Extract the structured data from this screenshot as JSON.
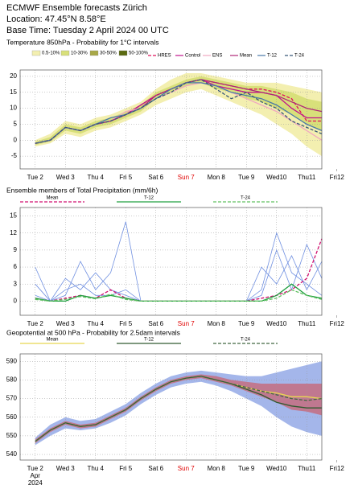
{
  "header": {
    "title": "ECMWF Ensemble forecasts Zürich",
    "location": "Location:  47.45°N 8.58°E",
    "base_time": "Base Time: Tuesday  2 April 2024 00 UTC"
  },
  "chart_data": [
    {
      "type": "line",
      "title": "Temperature 850hPa - Probability for 1°C intervals",
      "x": [
        0,
        12,
        24,
        36,
        48,
        60,
        72,
        84,
        96,
        108,
        120,
        132,
        144,
        156,
        168,
        180,
        192,
        204,
        216,
        228
      ],
      "xlim": [
        -12,
        228
      ],
      "xticks": [
        {
          "value": 0,
          "label": "Tue 2"
        },
        {
          "value": 24,
          "label": "Wed 3"
        },
        {
          "value": 48,
          "label": "Thu 4"
        },
        {
          "value": 72,
          "label": "Fri 5"
        },
        {
          "value": 96,
          "label": "Sat 6"
        },
        {
          "value": 120,
          "label": "Sun 7",
          "color": "#e00000"
        },
        {
          "value": 144,
          "label": "Mon 8"
        },
        {
          "value": 168,
          "label": "Tue 9"
        },
        {
          "value": 192,
          "label": "Wed10"
        },
        {
          "value": 216,
          "label": "Thu11"
        },
        {
          "value": 240,
          "label": "Fri12"
        }
      ],
      "ylim": [
        -9,
        22
      ],
      "yticks": [
        -5,
        0,
        5,
        10,
        15,
        20
      ],
      "grid": true,
      "bands": [
        {
          "name": "0.5-10%",
          "color": "#f3efb0",
          "lower": [
            -2,
            -1,
            2,
            1,
            3,
            4,
            6,
            8,
            11,
            13,
            15,
            16,
            14,
            12,
            10,
            8,
            5,
            2,
            -2,
            -5
          ],
          "upper": [
            0,
            2,
            6,
            5,
            7,
            8,
            10,
            12,
            16,
            19,
            21,
            21,
            20,
            19,
            18,
            18,
            18,
            17,
            16,
            15
          ]
        },
        {
          "name": "10-30%",
          "color": "#d8e07a",
          "lower": [
            -1.5,
            -0.5,
            3,
            2,
            4,
            5,
            7,
            9,
            13,
            15,
            17,
            18,
            16,
            15,
            13,
            12,
            10,
            8,
            5,
            3
          ],
          "upper": [
            -0.5,
            1,
            5,
            4,
            6,
            7,
            9,
            11,
            15,
            17,
            19,
            20,
            19,
            18,
            17,
            17,
            16,
            15,
            13,
            12
          ]
        },
        {
          "name": "30-50%",
          "color": "#a8a848"
        },
        {
          "name": "50-100%",
          "color": "#5a6a10"
        }
      ],
      "series": [
        {
          "name": "HRES",
          "color": "#e0105c",
          "dash": true,
          "values": [
            -1,
            0,
            4,
            3,
            5,
            6,
            8,
            11,
            14,
            16,
            18,
            19,
            18,
            17,
            16,
            16,
            15,
            13,
            6,
            6
          ]
        },
        {
          "name": "Control",
          "color": "#c0148c",
          "values": [
            -1,
            0,
            4,
            3,
            5,
            6,
            8,
            11,
            14,
            16,
            18,
            19,
            17,
            16,
            15,
            15,
            14,
            10,
            7,
            7
          ]
        },
        {
          "name": "ENS",
          "color": "#f0a8c0",
          "values": [
            -1,
            0,
            4,
            3,
            5,
            6,
            9,
            10,
            13,
            15,
            17,
            18,
            17,
            15,
            13,
            11,
            9,
            6,
            3,
            0
          ]
        },
        {
          "name": "Mean",
          "color": "#b02878",
          "values": [
            -1,
            0,
            4,
            3,
            5,
            6,
            8,
            10,
            14,
            16,
            18,
            19,
            18,
            17,
            16,
            15,
            14,
            12,
            10,
            9
          ]
        },
        {
          "name": "T-12",
          "color": "#4878a8",
          "values": [
            -1,
            0,
            4,
            3,
            5,
            7,
            8,
            10,
            13,
            16,
            18,
            18,
            17,
            15,
            14,
            13,
            11,
            8,
            5,
            3
          ]
        },
        {
          "name": "T-24",
          "color": "#385878",
          "dash": true,
          "values": [
            -1,
            0,
            4,
            3,
            5,
            6,
            8,
            10,
            13,
            15,
            18,
            19,
            16,
            13,
            15,
            12,
            10,
            6,
            4,
            2
          ]
        }
      ]
    },
    {
      "type": "line",
      "title": "Ensemble members of Total Precipitation (mm/6h)",
      "x": [
        0,
        12,
        24,
        36,
        48,
        60,
        72,
        84,
        96,
        108,
        120,
        132,
        144,
        156,
        168,
        180,
        192,
        204,
        216,
        228
      ],
      "xlim": [
        -12,
        228
      ],
      "xticks": [
        {
          "value": 0,
          "label": "Tue 2"
        },
        {
          "value": 24,
          "label": "Wed 3"
        },
        {
          "value": 48,
          "label": "Thu 4"
        },
        {
          "value": 72,
          "label": "Fri 5"
        },
        {
          "value": 96,
          "label": "Sat 6"
        },
        {
          "value": 120,
          "label": "Sun 7",
          "color": "#e00000"
        },
        {
          "value": 144,
          "label": "Mon 8"
        },
        {
          "value": 168,
          "label": "Tue 9"
        },
        {
          "value": 192,
          "label": "Wed10"
        },
        {
          "value": 216,
          "label": "Thu11"
        },
        {
          "value": 240,
          "label": "Fri12"
        }
      ],
      "ylim": [
        -2.5,
        16.5
      ],
      "yticks": [
        0,
        3,
        6,
        9,
        12,
        15
      ],
      "grid": true,
      "member_color": "#6f8fe0",
      "members": [
        [
          6,
          0,
          1,
          7,
          2,
          5,
          14,
          0,
          0,
          0,
          0,
          0,
          0,
          0,
          0,
          2,
          12,
          5,
          3,
          1
        ],
        [
          3,
          0,
          2,
          3,
          1,
          1,
          2,
          0,
          0,
          0,
          0,
          0,
          0,
          0,
          0,
          6,
          3,
          8,
          2,
          7
        ],
        [
          1,
          0,
          4,
          2,
          5,
          2,
          1,
          0,
          0,
          0,
          0,
          0,
          0,
          0,
          0,
          1,
          9,
          2,
          10,
          4
        ]
      ],
      "series": [
        {
          "name": "Mean",
          "color": "#d01070",
          "dash": true,
          "values": [
            0.5,
            0,
            0.5,
            1,
            0.5,
            2,
            0.5,
            0,
            0,
            0,
            0,
            0,
            0,
            0,
            0,
            0.5,
            1,
            2,
            4,
            11
          ]
        },
        {
          "name": "T-12",
          "color": "#20a040",
          "values": [
            0.5,
            0,
            0,
            1,
            0.5,
            1,
            0.5,
            0,
            0,
            0,
            0,
            0,
            0,
            0,
            0,
            0,
            1,
            3,
            1,
            0.5
          ]
        },
        {
          "name": "T-24",
          "color": "#60c060",
          "dash": true,
          "values": [
            0.3,
            0,
            0.3,
            0.8,
            0.4,
            1.2,
            0.3,
            0,
            0,
            0,
            0,
            0,
            0,
            0,
            0,
            0,
            0.5,
            2,
            1,
            0.3
          ]
        }
      ]
    },
    {
      "type": "line",
      "title": "Geopotential at 500 hPa - Probability for 2.5dam intervals",
      "x": [
        0,
        12,
        24,
        36,
        48,
        60,
        72,
        84,
        96,
        108,
        120,
        132,
        144,
        156,
        168,
        180,
        192,
        204,
        216,
        228
      ],
      "xlim": [
        -12,
        228
      ],
      "xticks": [
        {
          "value": 0,
          "label": "Tue 2"
        },
        {
          "value": 24,
          "label": "Wed 3"
        },
        {
          "value": 48,
          "label": "Thu 4"
        },
        {
          "value": 72,
          "label": "Fri 5"
        },
        {
          "value": 96,
          "label": "Sat 6"
        },
        {
          "value": 120,
          "label": "Sun 7",
          "color": "#e00000"
        },
        {
          "value": 144,
          "label": "Mon 8"
        },
        {
          "value": 168,
          "label": "Tue 9"
        },
        {
          "value": 192,
          "label": "Wed10"
        },
        {
          "value": 216,
          "label": "Thu11"
        },
        {
          "value": 240,
          "label": "Fri12"
        }
      ],
      "month_label": "Apr",
      "year_label": "2024",
      "ylim": [
        537,
        594
      ],
      "yticks": [
        540,
        550,
        560,
        570,
        580,
        590
      ],
      "grid": true,
      "bands": [
        {
          "color": "#a4b6ea",
          "lower": [
            545,
            550,
            554,
            553,
            554,
            557,
            561,
            567,
            572,
            576,
            578,
            579,
            577,
            574,
            570,
            566,
            560,
            555,
            552,
            550
          ],
          "upper": [
            549,
            556,
            560,
            558,
            559,
            563,
            567,
            573,
            578,
            582,
            584,
            585,
            584,
            583,
            582,
            582,
            584,
            586,
            588,
            590
          ]
        },
        {
          "color": "#c07890",
          "lower": [
            546,
            552,
            556,
            554,
            555,
            559,
            563,
            569,
            574,
            578,
            580,
            581,
            579,
            577,
            574,
            571,
            568,
            564,
            563,
            561
          ],
          "upper": [
            548,
            554,
            558,
            556,
            557,
            561,
            565,
            571,
            576,
            580,
            582,
            583,
            582,
            580,
            579,
            578,
            578,
            578,
            578,
            578
          ]
        }
      ],
      "series": [
        {
          "name": "Mean",
          "color": "#e8d850",
          "values": [
            547,
            553,
            557,
            555,
            556,
            560,
            564,
            570,
            575,
            579,
            581,
            582,
            580,
            578,
            576,
            574,
            573,
            571,
            571,
            570
          ]
        },
        {
          "name": "T-12",
          "color": "#305a30",
          "values": [
            547,
            553,
            557,
            555,
            556,
            560,
            564,
            570,
            575,
            579,
            581,
            582,
            580,
            578,
            575,
            572,
            568,
            566,
            565,
            565
          ]
        },
        {
          "name": "T-24",
          "color": "#406840",
          "dash": true,
          "values": [
            547,
            553,
            557,
            555,
            556,
            560,
            564,
            570,
            575,
            579,
            581,
            582,
            580,
            578,
            576,
            574,
            572,
            570,
            569,
            570
          ]
        }
      ]
    }
  ]
}
